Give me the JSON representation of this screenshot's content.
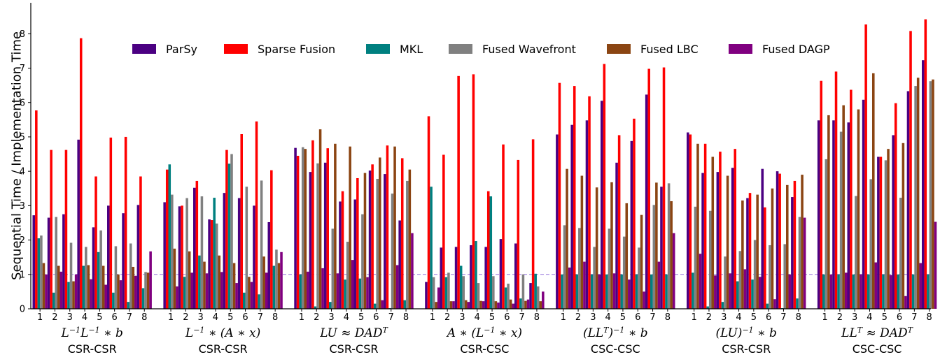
{
  "chart_data": {
    "type": "bar",
    "ylabel": "Sequential Time / Implementation Time",
    "ylim": [
      0,
      8.9
    ],
    "yticks": [
      0,
      1,
      2,
      3,
      4,
      5,
      6,
      7,
      8
    ],
    "reference_line": 1,
    "legend_position": "top",
    "series": [
      {
        "name": "ParSy",
        "color": "#4b0082"
      },
      {
        "name": "Sparse Fusion",
        "color": "#ff0000"
      },
      {
        "name": "MKL",
        "color": "#008080"
      },
      {
        "name": "Fused Wavefront",
        "color": "#808080"
      },
      {
        "name": "Fused LBC",
        "color": "#8b4513"
      },
      {
        "name": "Fused DAGP",
        "color": "#800080"
      }
    ],
    "categories": [
      "1",
      "2",
      "3",
      "4",
      "5",
      "6",
      "7",
      "8"
    ],
    "groups": [
      {
        "name_html": "L<tspan baseline-shift=\"super\" font-size=\"11\">−1</tspan>L<tspan baseline-shift=\"super\" font-size=\"11\">−1</tspan> ∗ b",
        "name": "L^-1 L^-1 * b",
        "format": "CSR-CSR",
        "values": [
          [
            2.72,
            5.77,
            2.05,
            2.13,
            1.33,
            1.0
          ],
          [
            2.65,
            4.62,
            0.47,
            2.67,
            1.25,
            1.08
          ],
          [
            2.75,
            4.62,
            0.78,
            1.92,
            0.8,
            1.0
          ],
          [
            4.92,
            7.87,
            1.25,
            1.8,
            1.27,
            0.86
          ],
          [
            2.37,
            3.85,
            1.65,
            2.28,
            1.25,
            0.7
          ],
          [
            3.0,
            4.98,
            0.47,
            1.82,
            1.0,
            0.83
          ],
          [
            2.78,
            5.0,
            0.2,
            1.9,
            1.22,
            0.96
          ],
          [
            3.02,
            3.85,
            0.6,
            1.07,
            1.05,
            1.67
          ]
        ]
      },
      {
        "name_html": "L<tspan baseline-shift=\"super\" font-size=\"11\">−1</tspan> ∗ (A ∗ x)",
        "name": "L^-1 * (A * x)",
        "format": "CSR-CSR",
        "values": [
          [
            3.1,
            4.05,
            4.2,
            3.32,
            1.75,
            0.65
          ],
          [
            2.98,
            3.0,
            0.93,
            3.22,
            1.67,
            1.05
          ],
          [
            3.52,
            3.72,
            1.55,
            3.27,
            1.37,
            1.03
          ],
          [
            2.6,
            2.58,
            3.23,
            2.48,
            1.55,
            1.07
          ],
          [
            3.37,
            4.62,
            4.22,
            4.5,
            1.33,
            0.75
          ],
          [
            3.22,
            5.08,
            0.47,
            3.55,
            0.93,
            0.78
          ],
          [
            3.0,
            5.45,
            0.42,
            3.73,
            1.52,
            1.05
          ],
          [
            2.52,
            4.03,
            1.25,
            1.72,
            1.33,
            1.65
          ]
        ]
      },
      {
        "name_html": "LU ≈ DAD<tspan baseline-shift=\"super\" font-size=\"11\">T</tspan>",
        "name": "LU ≈ DAD^T",
        "format": "CSR-CSR",
        "values": [
          [
            4.68,
            4.45,
            1.0,
            4.7,
            4.65,
            1.08
          ],
          [
            3.98,
            4.9,
            0.07,
            4.23,
            5.22,
            1.18
          ],
          [
            4.25,
            4.67,
            0.2,
            2.33,
            4.8,
            1.03
          ],
          [
            3.12,
            3.42,
            0.85,
            1.95,
            4.72,
            1.42
          ],
          [
            3.18,
            3.8,
            0.88,
            2.75,
            3.95,
            0.92
          ],
          [
            4.02,
            4.2,
            0.15,
            3.78,
            4.4,
            0.25
          ],
          [
            3.92,
            4.75,
            0.02,
            3.35,
            4.72,
            1.27
          ],
          [
            2.57,
            4.38,
            0.25,
            3.72,
            4.05,
            2.2
          ]
        ]
      },
      {
        "name_html": "A ∗ (L<tspan baseline-shift=\"super\" font-size=\"11\">−1</tspan> ∗ x)",
        "name": "A * (L^-1 * x)",
        "format": "CSR-CSC",
        "values": [
          [
            0.78,
            5.6,
            3.55,
            0.92,
            0.2,
            0.62
          ],
          [
            1.78,
            4.48,
            0.92,
            1.05,
            0.22,
            0.22
          ],
          [
            1.8,
            6.77,
            1.25,
            0.95,
            0.25,
            0.2
          ],
          [
            1.85,
            6.82,
            1.97,
            0.75,
            0.23,
            0.22
          ],
          [
            1.8,
            3.42,
            3.27,
            0.95,
            0.22,
            0.18
          ],
          [
            2.03,
            4.78,
            0.62,
            0.73,
            0.27,
            0.15
          ],
          [
            1.9,
            4.33,
            0.3,
            1.0,
            0.23,
            0.27
          ],
          [
            0.75,
            4.93,
            1.02,
            0.65,
            0.22,
            0.5
          ]
        ]
      },
      {
        "name_html": "(LL<tspan baseline-shift=\"super\" font-size=\"11\">T</tspan>)<tspan baseline-shift=\"super\" font-size=\"11\">−1</tspan> ∗ b",
        "name": "(LL^T)^-1 * b",
        "format": "CSC-CSC",
        "values": [
          [
            5.07,
            6.57,
            1.0,
            2.43,
            4.07,
            1.2
          ],
          [
            5.35,
            6.48,
            1.0,
            2.35,
            3.87,
            1.37
          ],
          [
            5.48,
            6.18,
            1.0,
            1.8,
            3.53,
            1.0
          ],
          [
            6.05,
            7.12,
            1.0,
            2.33,
            3.68,
            1.03
          ],
          [
            4.25,
            5.05,
            1.0,
            2.1,
            3.07,
            0.85
          ],
          [
            4.88,
            5.53,
            1.0,
            1.78,
            2.73,
            0.5
          ],
          [
            6.23,
            6.98,
            1.0,
            3.02,
            3.67,
            1.37
          ],
          [
            3.55,
            7.02,
            1.0,
            3.65,
            3.13,
            2.2
          ]
        ]
      },
      {
        "name_html": "(LU)<tspan baseline-shift=\"super\" font-size=\"11\">−1</tspan> ∗ b",
        "name": "(LU)^-1 * b",
        "format": "CSR-CSR",
        "values": [
          [
            5.13,
            5.07,
            1.05,
            2.97,
            4.8,
            1.6
          ],
          [
            3.95,
            4.8,
            0.07,
            2.85,
            4.42,
            0.97
          ],
          [
            3.98,
            4.57,
            0.2,
            1.52,
            3.87,
            1.03
          ],
          [
            4.1,
            4.65,
            0.8,
            1.68,
            3.15,
            1.15
          ],
          [
            3.22,
            3.37,
            0.85,
            2.0,
            3.32,
            0.93
          ],
          [
            4.07,
            2.95,
            0.15,
            1.85,
            3.5,
            0.28
          ],
          [
            4.0,
            3.93,
            0.02,
            1.88,
            3.6,
            1.0
          ],
          [
            3.25,
            3.72,
            0.3,
            2.67,
            3.9,
            2.65
          ]
        ]
      },
      {
        "name_html": "LL<tspan baseline-shift=\"super\" font-size=\"11\">T</tspan> ≈ DAD<tspan baseline-shift=\"super\" font-size=\"11\">T</tspan>",
        "name": "LL^T ≈ DAD^T",
        "format": "CSC-CSC",
        "values": [
          [
            5.48,
            6.63,
            1.0,
            4.35,
            5.63,
            1.0
          ],
          [
            5.48,
            6.9,
            1.0,
            5.15,
            5.92,
            1.05
          ],
          [
            5.42,
            6.37,
            1.0,
            3.28,
            5.8,
            1.0
          ],
          [
            6.08,
            8.27,
            1.0,
            3.77,
            6.85,
            1.35
          ],
          [
            4.42,
            4.42,
            1.0,
            4.32,
            4.65,
            0.98
          ],
          [
            5.05,
            5.98,
            1.0,
            3.23,
            4.82,
            0.37
          ],
          [
            6.33,
            8.08,
            1.0,
            6.48,
            6.72,
            1.33
          ],
          [
            7.23,
            8.42,
            1.0,
            6.62,
            6.67,
            2.53
          ]
        ]
      }
    ]
  }
}
